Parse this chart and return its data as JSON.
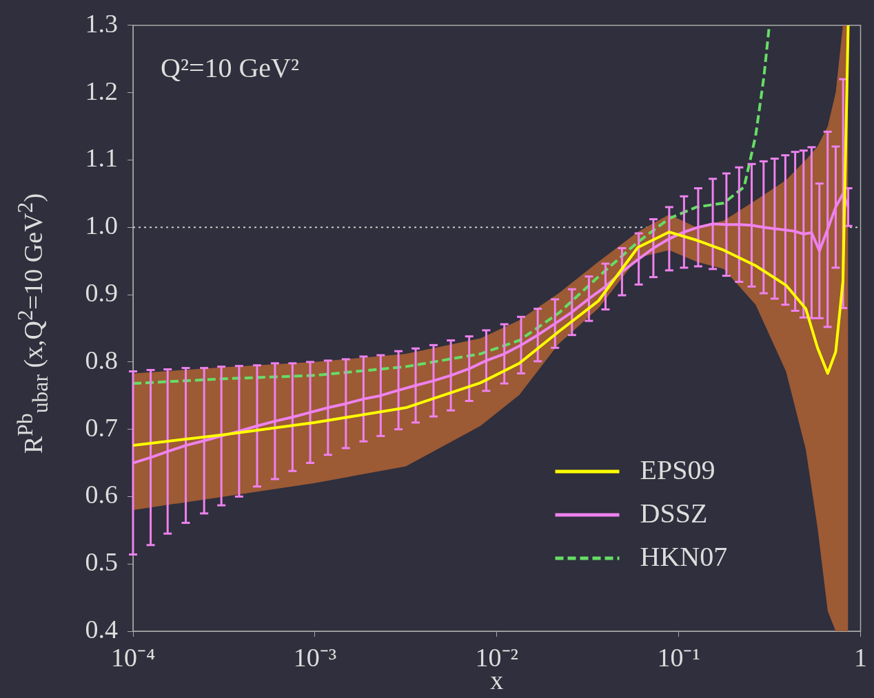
{
  "chart_data": {
    "type": "line",
    "xlabel": "x",
    "ylabel": "R$^{Pb}$$_{ubar}$ (x,Q$^{2}$=10 GeV$^{2}$)",
    "annotations": [
      "Q²=10 GeV²"
    ],
    "log": "x",
    "xlim": [
      0.0001,
      1
    ],
    "ylim": [
      0.4,
      1.3
    ],
    "xticks": [
      {
        "value": 0.0001,
        "label": "10⁻⁴"
      },
      {
        "value": 0.001,
        "label": "10⁻³"
      },
      {
        "value": 0.01,
        "label": "10⁻²"
      },
      {
        "value": 0.1,
        "label": "10⁻¹"
      },
      1
    ],
    "yticks": [
      0.4,
      0.5,
      0.6,
      0.7,
      0.8,
      0.9,
      {
        "value": 1,
        "label": "1.0"
      },
      1.1,
      1.2,
      1.3
    ],
    "legend": "bottom right",
    "ref_lines": [
      {
        "axis": "y",
        "value": 1,
        "line_style": "dotted",
        "color": "#cccccc"
      }
    ],
    "series": [
      {
        "name": "EPS09",
        "color": "#ffff00",
        "x": [
          0.0001,
          0.000316,
          0.001,
          0.00316,
          0.00813,
          0.0133,
          0.0219,
          0.0363,
          0.0596,
          0.0887,
          0.125,
          0.177,
          0.265,
          0.389,
          0.5,
          0.58,
          0.66,
          0.73,
          0.8,
          0.855
        ],
        "values": [
          0.676,
          0.692,
          0.71,
          0.732,
          0.769,
          0.798,
          0.845,
          0.891,
          0.97,
          0.993,
          0.981,
          0.966,
          0.943,
          0.914,
          0.879,
          0.821,
          0.783,
          0.815,
          0.92,
          1.3
        ],
        "lower": [
          0.58,
          0.6,
          0.62,
          0.645,
          0.705,
          0.751,
          0.827,
          0.88,
          0.955,
          0.966,
          0.949,
          0.938,
          0.885,
          0.786,
          0.67,
          0.554,
          0.43,
          0.4,
          0.4,
          0.4
        ],
        "upper": [
          0.783,
          0.792,
          0.8,
          0.812,
          0.835,
          0.862,
          0.902,
          0.949,
          0.993,
          1.019,
          1.0,
          1.01,
          1.04,
          1.07,
          1.1,
          1.12,
          1.15,
          1.2,
          1.3,
          1.3
        ]
      },
      {
        "name": "DSSZ",
        "color": "#ee82ee",
        "x": [
          0.0001,
          0.000125,
          0.000155,
          0.000195,
          0.000246,
          0.000306,
          0.000383,
          0.000481,
          0.000603,
          0.000753,
          0.000942,
          0.00118,
          0.00148,
          0.00185,
          0.0023,
          0.00288,
          0.00358,
          0.00449,
          0.00559,
          0.00705,
          0.00875,
          0.011,
          0.0136,
          0.0168,
          0.0209,
          0.0259,
          0.0321,
          0.0396,
          0.0488,
          0.0603,
          0.0726,
          0.0887,
          0.107,
          0.128,
          0.154,
          0.183,
          0.215,
          0.252,
          0.293,
          0.337,
          0.386,
          0.437,
          0.486,
          0.538,
          0.594,
          0.659,
          0.73,
          0.802,
          0.855
        ],
        "values": [
          0.65,
          0.658,
          0.667,
          0.676,
          0.683,
          0.69,
          0.697,
          0.705,
          0.712,
          0.718,
          0.725,
          0.732,
          0.738,
          0.745,
          0.75,
          0.758,
          0.765,
          0.772,
          0.78,
          0.79,
          0.802,
          0.812,
          0.825,
          0.84,
          0.857,
          0.874,
          0.894,
          0.912,
          0.934,
          0.953,
          0.969,
          0.983,
          0.993,
          1.0,
          1.005,
          1.004,
          1.004,
          1.003,
          1.0,
          0.998,
          0.996,
          0.994,
          0.99,
          0.992,
          0.965,
          0.997,
          1.03,
          1.05,
          1.03
        ],
        "errors": [
          0.136,
          0.13,
          0.122,
          0.115,
          0.108,
          0.103,
          0.097,
          0.09,
          0.086,
          0.08,
          0.075,
          0.07,
          0.066,
          0.063,
          0.06,
          0.058,
          0.055,
          0.053,
          0.052,
          0.048,
          0.045,
          0.044,
          0.042,
          0.039,
          0.036,
          0.034,
          0.033,
          0.034,
          0.035,
          0.038,
          0.043,
          0.047,
          0.053,
          0.058,
          0.067,
          0.076,
          0.085,
          0.091,
          0.098,
          0.104,
          0.111,
          0.118,
          0.124,
          0.127,
          0.1,
          0.145,
          0.09,
          0.17,
          0.028
        ]
      },
      {
        "name": "HKN07",
        "color": "#66dd66",
        "line_style": "dashed",
        "x": [
          0.0001,
          0.000316,
          0.001,
          0.00316,
          0.00813,
          0.0133,
          0.022,
          0.036,
          0.0596,
          0.0887,
          0.125,
          0.177,
          0.229,
          0.265,
          0.294,
          0.315
        ],
        "values": [
          0.768,
          0.775,
          0.78,
          0.793,
          0.812,
          0.832,
          0.873,
          0.926,
          0.978,
          1.013,
          1.03,
          1.036,
          1.06,
          1.136,
          1.223,
          1.3
        ]
      }
    ]
  }
}
